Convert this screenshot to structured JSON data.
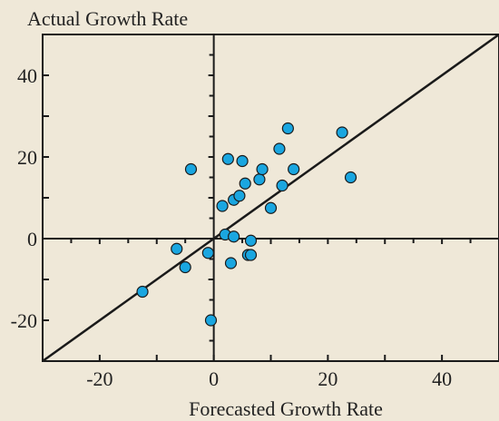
{
  "chart_data": {
    "type": "scatter",
    "title": "",
    "xlabel": "Forecasted Growth Rate",
    "ylabel": "Actual Growth Rate",
    "xlim": [
      -30,
      50
    ],
    "ylim": [
      -30,
      50
    ],
    "x_ticks": [
      -20,
      0,
      20,
      40
    ],
    "y_ticks": [
      -20,
      0,
      20,
      40
    ],
    "x_tick_labels": [
      "-20",
      "0",
      "20",
      "40"
    ],
    "y_tick_labels": [
      "-20",
      "0",
      "20",
      "40"
    ],
    "grid": false,
    "reference_line": {
      "type": "y=x",
      "color": "#1a1a1a"
    },
    "axis_crosshair_at": [
      0,
      0
    ],
    "marker_color": "#1aa6e0",
    "marker_edge_color": "#1a1a1a",
    "series": [
      {
        "x": [
          -12.5,
          -6.5,
          -5.0,
          -4.0,
          -1.0,
          -0.5,
          1.5,
          2.0,
          2.5,
          3.0,
          3.5,
          3.5,
          4.5,
          5.0,
          5.5,
          6.0,
          6.5,
          6.5,
          8.0,
          8.5,
          10.0,
          11.5,
          12.0,
          13.0,
          14.0,
          22.5,
          24.0
        ],
        "y": [
          -13.0,
          -2.5,
          -7.0,
          17.0,
          -3.5,
          -20.0,
          8.0,
          1.0,
          19.5,
          -6.0,
          9.5,
          0.5,
          10.5,
          19.0,
          13.5,
          -4.0,
          -0.5,
          -4.0,
          14.5,
          17.0,
          7.5,
          22.0,
          13.0,
          27.0,
          17.0,
          26.0,
          15.0
        ]
      }
    ]
  }
}
